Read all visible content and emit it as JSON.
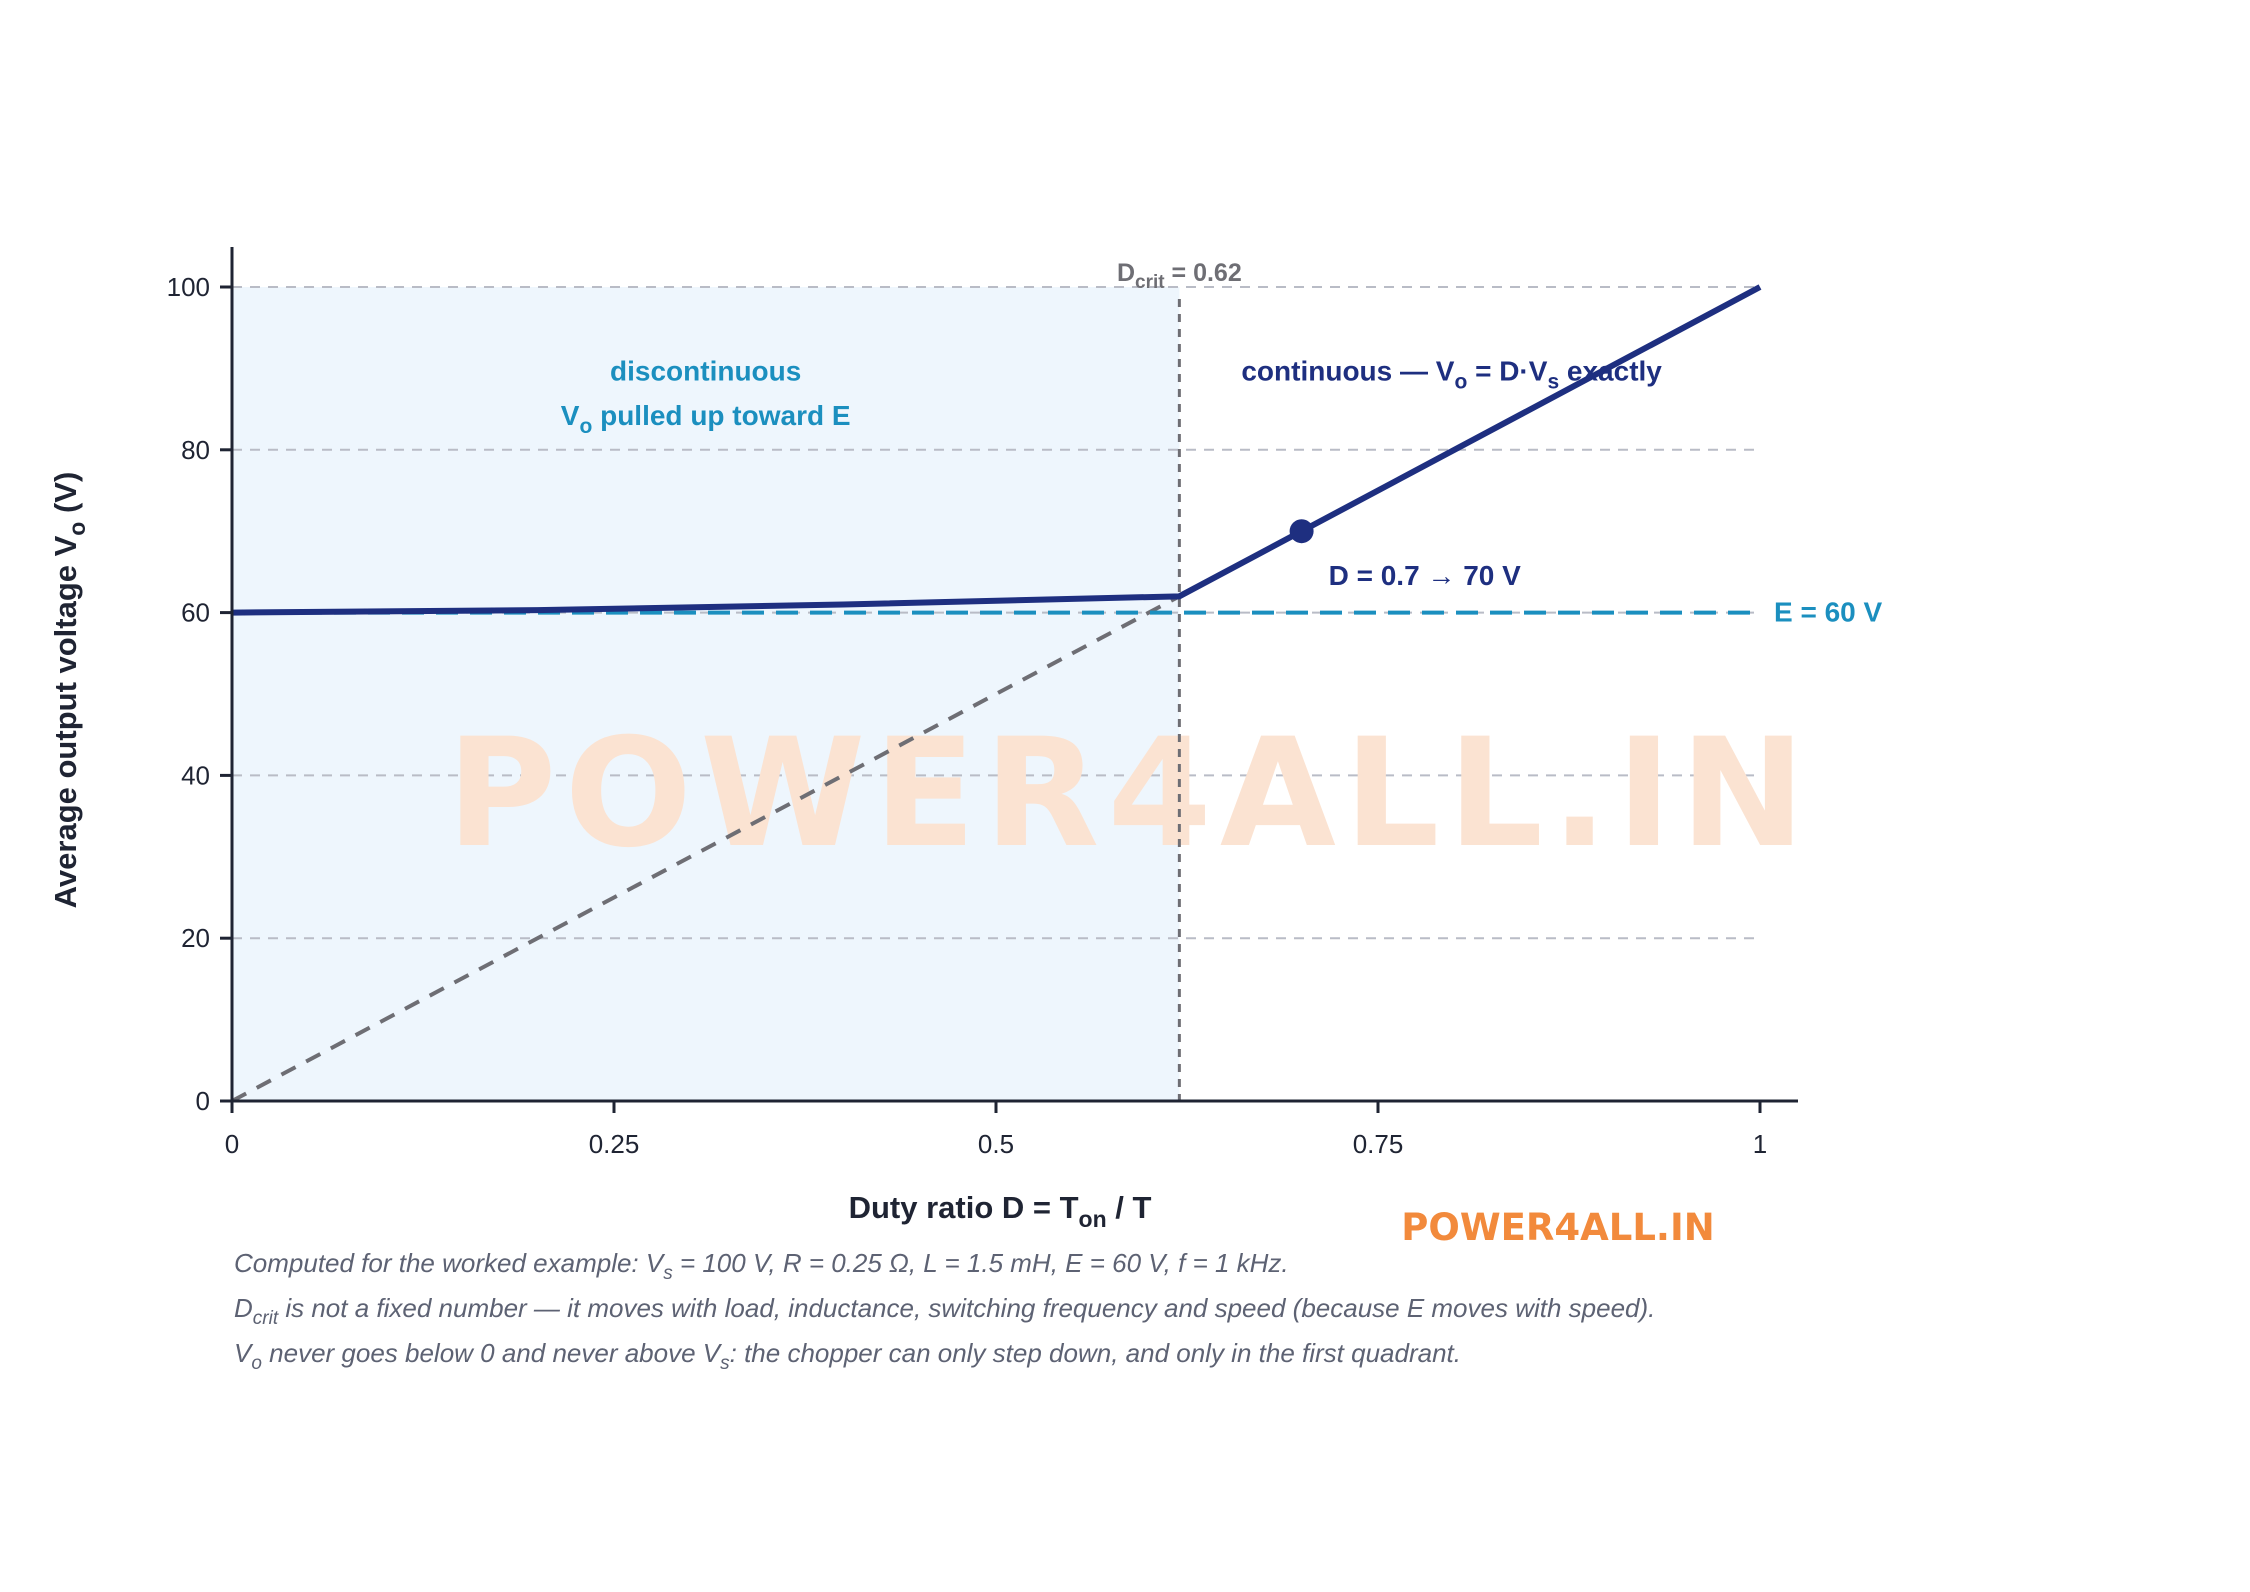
{
  "colors": {
    "curve": "#1e2f80",
    "e_line": "#1b8fbf",
    "ideal_line": "#6e6e74",
    "shade": "#eef6fd",
    "grid": "#b9bcc6",
    "axis": "#1f2433",
    "watermark": "#fbe3d2",
    "brand_logo": "#f28a3c"
  },
  "chart_data": {
    "type": "line",
    "xlabel_main": "Duty ratio D = T",
    "xlabel_sub": "on",
    "xlabel_tail": " / T",
    "ylabel_main": "Average output voltage V",
    "ylabel_sub": "o",
    "ylabel_tail": " (V)",
    "xlim": [
      0,
      1
    ],
    "ylim": [
      0,
      100
    ],
    "x_ticks": [
      0,
      0.25,
      0.5,
      0.75,
      1
    ],
    "x_tick_labels": [
      "0",
      "0.25",
      "0.5",
      "0.75",
      "1"
    ],
    "y_ticks": [
      0,
      20,
      40,
      60,
      80,
      100
    ],
    "y_tick_labels": [
      "0",
      "20",
      "40",
      "60",
      "80",
      "100"
    ],
    "grid": "horizontal dashed",
    "series": [
      {
        "points": [
          [
            0,
            60
          ],
          [
            0.2,
            60.3
          ],
          [
            0.4,
            61.0
          ],
          [
            0.62,
            62
          ],
          [
            1,
            100
          ]
        ]
      },
      {
        "points": [
          [
            0,
            0
          ],
          [
            0.62,
            62
          ]
        ]
      }
    ],
    "reference_line_E": {
      "y": 60,
      "label": "E = 60 V"
    },
    "critical": {
      "x": 0.62,
      "label_main": "D",
      "label_sub": "crit",
      "label_tail": " = 0.62"
    },
    "operating_point": {
      "x": 0.7,
      "y": 70,
      "label": "D = 0.7 → 70 V"
    },
    "regions": {
      "discontinuous_line1": "discontinuous",
      "discontinuous_line2_main": "V",
      "discontinuous_line2_sub": "o",
      "discontinuous_line2_tail": " pulled up toward E",
      "continuous_main": "continuous — V",
      "continuous_sub1": "o",
      "continuous_mid": " = D·V",
      "continuous_sub2": "s",
      "continuous_tail": " exactly"
    }
  },
  "notes": {
    "line1_a": "Computed for the worked example: V",
    "line1_sub": "s",
    "line1_b": " = 100 V, R = 0.25 Ω, L = 1.5 mH, E = 60 V, f = 1 kHz.",
    "line2_a": "D",
    "line2_sub": "crit",
    "line2_b": " is not a fixed number — it moves with load, inductance, switching frequency and speed (because E moves with speed).",
    "line3_a": "V",
    "line3_sub1": "o",
    "line3_b": " never goes below 0 and never above V",
    "line3_sub2": "s",
    "line3_c": ": the chopper can only step down, and only in the first quadrant."
  },
  "watermark": "POWER4ALL.IN",
  "brand_logo": "POWER4ALL.IN"
}
